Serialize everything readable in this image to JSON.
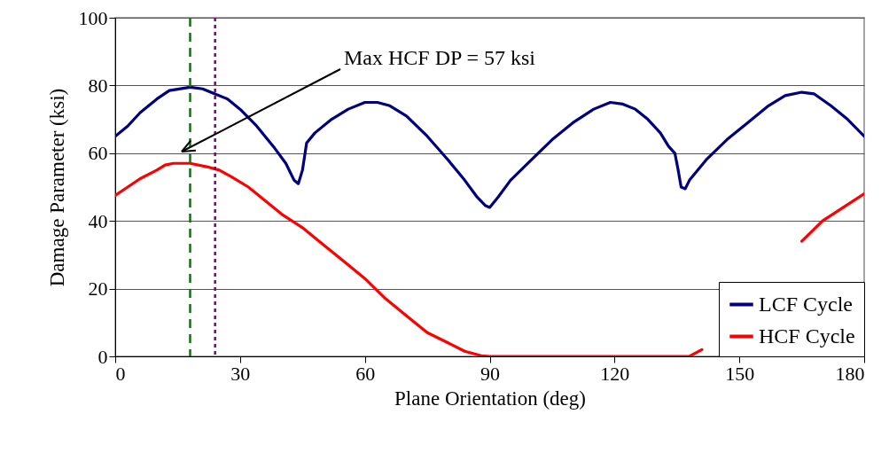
{
  "chart_data": {
    "type": "line",
    "xlabel": "Plane Orientation (deg)",
    "ylabel": "Damage Parameter (ksi)",
    "xlim": [
      0,
      180
    ],
    "xticks": [
      0,
      30,
      60,
      90,
      120,
      150,
      180
    ],
    "ylim": [
      0,
      100
    ],
    "yticks": [
      0,
      20,
      40,
      60,
      80,
      100
    ],
    "grid": "y",
    "legend": "bottom right",
    "line_style": "solid",
    "marker": "none",
    "series": [
      {
        "name": "LCF Cycle",
        "color": "#000080",
        "x": [
          0,
          3,
          6,
          10,
          13,
          18,
          21,
          24,
          27,
          30,
          34,
          38,
          41,
          43,
          44,
          45,
          46,
          48,
          52,
          56,
          60,
          63,
          66,
          70,
          75,
          80,
          84,
          87,
          89,
          90,
          92,
          95,
          100,
          105,
          110,
          115,
          119,
          122,
          125,
          128,
          131,
          133,
          134.5,
          135.3,
          136,
          137,
          138,
          142,
          147,
          152,
          157,
          161,
          165,
          168,
          172,
          176,
          180
        ],
        "values": [
          65,
          68,
          72,
          76,
          78.5,
          79.5,
          79,
          77.5,
          76,
          73,
          68,
          62,
          57,
          52,
          51,
          55,
          63,
          66,
          70,
          73,
          75,
          75,
          74,
          71,
          65,
          58,
          52,
          47,
          44.5,
          44,
          47,
          52,
          58,
          64,
          69,
          73,
          75,
          74.5,
          73,
          70,
          66,
          62,
          60,
          55,
          50,
          49.5,
          52,
          58,
          64,
          69,
          74,
          77,
          78,
          77.5,
          74,
          70,
          65
        ]
      },
      {
        "name": "HCF Cycle",
        "color": "#ff0000",
        "x": [
          0,
          3,
          6,
          10,
          12,
          14,
          18,
          22,
          25,
          28,
          32,
          36,
          40,
          45,
          50,
          55,
          60,
          65,
          70,
          75,
          80,
          84,
          88,
          90,
          100,
          120,
          138,
          141,
          145,
          150,
          155,
          160,
          165,
          170,
          175,
          180
        ],
        "values": [
          47.5,
          50,
          52.5,
          55,
          56.5,
          57,
          57,
          56,
          55,
          53,
          50,
          46,
          42,
          38,
          33,
          28,
          23,
          17,
          12,
          7,
          4,
          1.5,
          0.2,
          0,
          0,
          0,
          0,
          2,
          null,
          null,
          null,
          null,
          34,
          40,
          44,
          48
        ]
      }
    ],
    "ref_lines": [
      {
        "axis": "x",
        "value": 18,
        "color": "#008000",
        "line_style": "dashed"
      },
      {
        "axis": "x",
        "value": 24,
        "color": "#800080",
        "line_style": "dotted"
      }
    ],
    "annotations": [
      "Max HCF DP = 57 ksi"
    ]
  }
}
